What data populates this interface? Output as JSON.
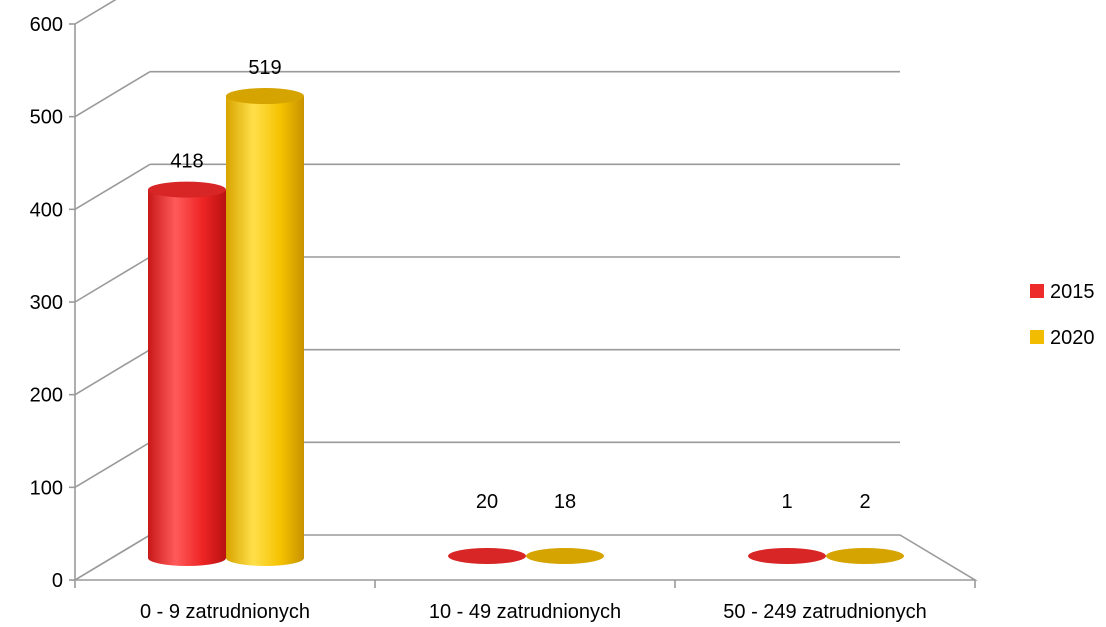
{
  "chart_data": {
    "type": "bar",
    "categories": [
      "0 - 9 zatrudnionych",
      "10 - 49 zatrudnionych",
      "50 - 249 zatrudnionych"
    ],
    "series": [
      {
        "name": "2015",
        "values": [
          418,
          20,
          1
        ],
        "color": "#ee2b2b"
      },
      {
        "name": "2020",
        "values": [
          519,
          18,
          2
        ],
        "color": "#f2bd00"
      }
    ],
    "yticks": [
      "0",
      "100",
      "200",
      "300",
      "400",
      "500",
      "600"
    ],
    "ylim": [
      0,
      600
    ],
    "grid": true,
    "legend": "right",
    "style": "3d-cylinder"
  }
}
